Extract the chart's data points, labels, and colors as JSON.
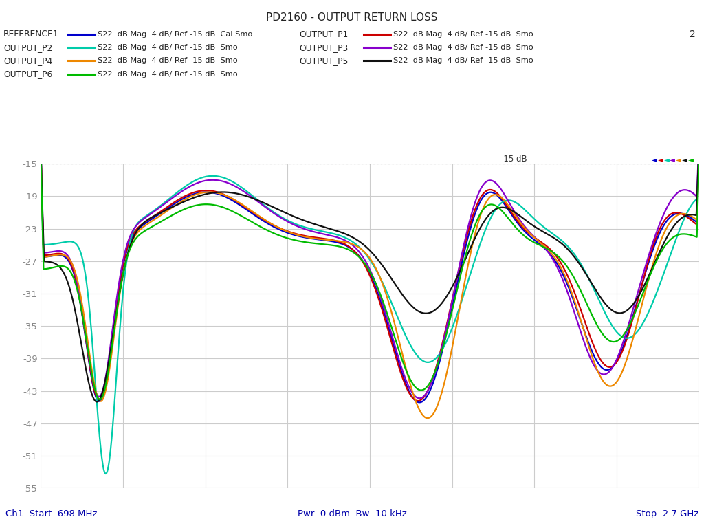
{
  "title": "PD2160 - OUTPUT RETURN LOSS",
  "xmin": 0.698,
  "xmax": 2.7,
  "ymin": -55,
  "ymax": -15,
  "yticks": [
    -15,
    -19,
    -23,
    -27,
    -31,
    -35,
    -39,
    -43,
    -47,
    -51,
    -55
  ],
  "xlabel_left": "Ch1  Start  698 MHz",
  "xlabel_center": "Pwr  0 dBm  Bw  10 kHz",
  "xlabel_right": "Stop  2.7 GHz",
  "legend": [
    {
      "name": "REFERENCE1",
      "color": "#0000cc",
      "desc": "S22  dB Mag  4 dB/ Ref -15 dB  Cal Smo"
    },
    {
      "name": "OUTPUT_P1",
      "color": "#cc0000",
      "desc": "S22  dB Mag  4 dB/ Ref -15 dB  Smo"
    },
    {
      "name": "OUTPUT_P2",
      "color": "#00ccaa",
      "desc": "S22  dB Mag  4 dB/ Ref -15 dB  Smo"
    },
    {
      "name": "OUTPUT_P3",
      "color": "#8800cc",
      "desc": "S22  dB Mag  4 dB/ Ref -15 dB  Smo"
    },
    {
      "name": "OUTPUT_P4",
      "color": "#ee8800",
      "desc": "S22  dB Mag  4 dB/ Ref -15 dB  Smo"
    },
    {
      "name": "OUTPUT_P5",
      "color": "#111111",
      "desc": "S22  dB Mag  4 dB/ Ref -15 dB  Smo"
    },
    {
      "name": "OUTPUT_P6",
      "color": "#00bb00",
      "desc": "S22  dB Mag  4 dB/ Ref -15 dB  Smo"
    }
  ],
  "marker_colors": [
    "#0000cc",
    "#cc0000",
    "#00ccaa",
    "#8800cc",
    "#ee8800",
    "#111111",
    "#00bb00"
  ],
  "background_color": "#ffffff",
  "grid_color": "#cccccc",
  "label_number": "2"
}
